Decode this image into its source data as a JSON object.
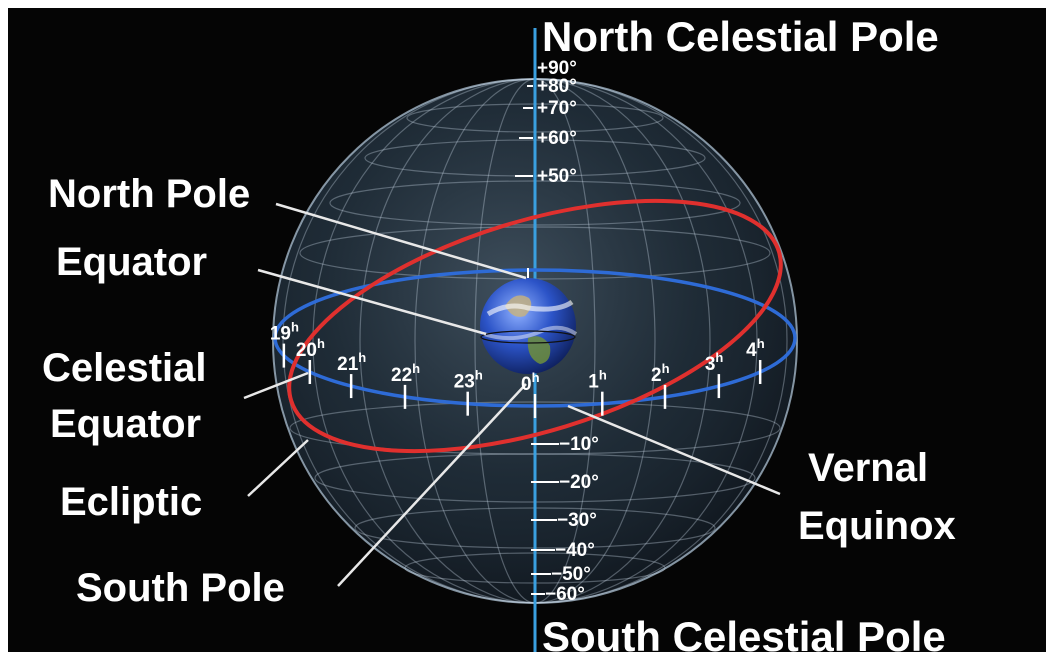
{
  "labels": {
    "north_celestial_pole": "North Celestial Pole",
    "south_celestial_pole": "South Celestial Pole",
    "north_pole": "North Pole",
    "equator": "Equator",
    "celestial_equator_line1": "Celestial",
    "celestial_equator_line2": "Equator",
    "ecliptic": "Ecliptic",
    "south_pole": "South Pole",
    "vernal_equinox_line1": "Vernal",
    "vernal_equinox_line2": "Equinox"
  },
  "declination_north": [
    "+90°",
    "+80°",
    "+70°",
    "+60°",
    "+50°"
  ],
  "declination_south": [
    "10°",
    "20°",
    "30°",
    "40°",
    "50°",
    "60°"
  ],
  "right_ascension": [
    "19",
    "20",
    "21",
    "22",
    "23",
    "0",
    "1",
    "2",
    "3",
    "4"
  ],
  "hour_suffix": "h",
  "colors": {
    "background": "#050505",
    "celestial_equator": "#2e6bd6",
    "ecliptic": "#e0302e",
    "axis": "#3aa0e0",
    "sphere": "#9fb8cc"
  }
}
